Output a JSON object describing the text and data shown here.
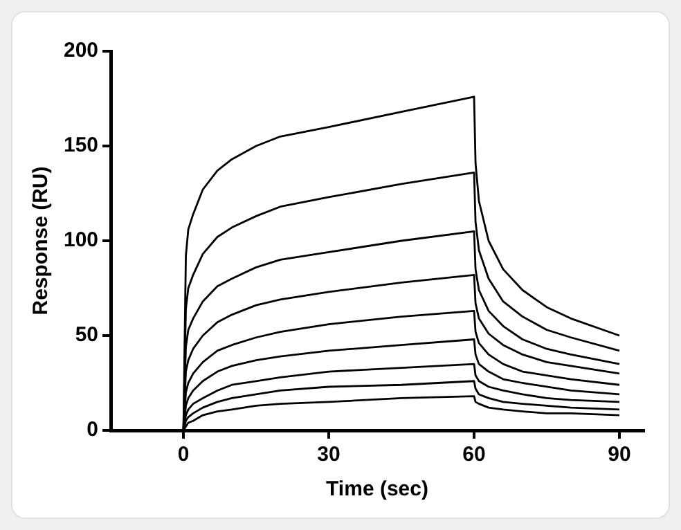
{
  "chart_data": {
    "type": "line",
    "xlabel": "Time (sec)",
    "ylabel": "Response (RU)",
    "x": [
      -5,
      0,
      0.5,
      1,
      2,
      4,
      7,
      10,
      15,
      20,
      30,
      45,
      60,
      60.3,
      61,
      63,
      66,
      70,
      75,
      80,
      90
    ],
    "xlim": [
      -15,
      95
    ],
    "xticks": [
      0,
      30,
      60,
      90
    ],
    "ylim": [
      0,
      200
    ],
    "yticks": [
      0,
      50,
      100,
      150,
      200
    ],
    "grid": false,
    "legend": false,
    "marker": "none",
    "line_style": "solid",
    "series": [
      {
        "color": "#000000",
        "values": [
          0,
          0,
          92,
          106,
          114,
          127,
          137,
          143,
          150,
          155,
          160,
          168,
          176,
          141,
          121,
          100,
          85,
          74,
          65,
          59,
          50
        ]
      },
      {
        "color": "#000000",
        "values": [
          0,
          0,
          64,
          75,
          82,
          93,
          102,
          107,
          113,
          118,
          123,
          130,
          136,
          110,
          95,
          80,
          68,
          60,
          53,
          49,
          42
        ]
      },
      {
        "color": "#000000",
        "values": [
          0,
          0,
          44,
          53,
          59,
          68,
          76,
          80,
          86,
          90,
          94,
          100,
          105,
          85,
          74,
          63,
          55,
          48,
          43,
          40,
          35
        ]
      },
      {
        "color": "#000000",
        "values": [
          0,
          0,
          31,
          37,
          43,
          50,
          57,
          61,
          66,
          69,
          73,
          78,
          82,
          67,
          59,
          51,
          45,
          40,
          36,
          34,
          30
        ]
      },
      {
        "color": "#000000",
        "values": [
          0,
          0,
          20,
          25,
          30,
          36,
          42,
          45,
          49,
          52,
          56,
          60,
          63,
          52,
          46,
          40,
          35,
          31,
          29,
          27,
          24
        ]
      },
      {
        "color": "#000000",
        "values": [
          0,
          0,
          13,
          17,
          21,
          26,
          31,
          34,
          37,
          39,
          42,
          45,
          48,
          40,
          35,
          31,
          27,
          25,
          23,
          21,
          19
        ]
      },
      {
        "color": "#000000",
        "values": [
          0,
          0,
          8,
          11,
          14,
          17,
          21,
          24,
          26,
          28,
          31,
          33,
          35,
          29,
          26,
          23,
          21,
          19,
          17,
          16,
          15
        ]
      },
      {
        "color": "#000000",
        "values": [
          0,
          0,
          5,
          7,
          9,
          12,
          15,
          17,
          19,
          21,
          23,
          24,
          26,
          22,
          19,
          17,
          15,
          14,
          13,
          12,
          11
        ]
      },
      {
        "color": "#000000",
        "values": [
          0,
          0,
          2,
          4,
          5,
          8,
          10,
          11,
          13,
          14,
          15,
          17,
          18,
          15,
          14,
          12,
          11,
          10,
          9,
          9,
          8
        ]
      }
    ]
  }
}
